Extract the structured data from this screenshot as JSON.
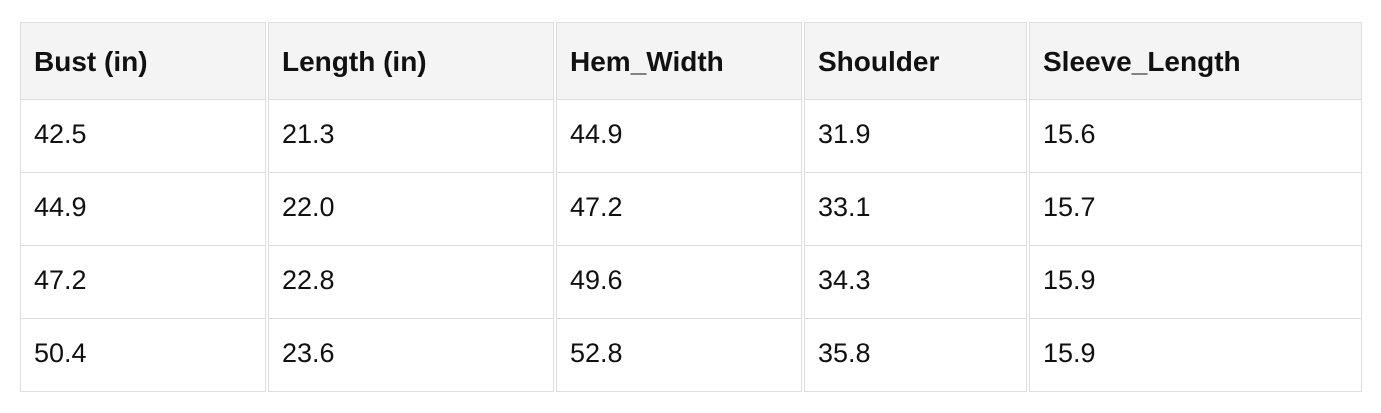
{
  "colors": {
    "page_bg": "#ffffff",
    "header_bg": "#f4f4f4",
    "border": "#dedede",
    "text": "#111111"
  },
  "chart_data": {
    "type": "table",
    "title": "",
    "columns": [
      "Bust (in)",
      "Length (in)",
      "Hem_Width",
      "Shoulder",
      "Sleeve_Length"
    ],
    "rows": [
      [
        "42.5",
        "21.3",
        "44.9",
        "31.9",
        "15.6"
      ],
      [
        "44.9",
        "22.0",
        "47.2",
        "33.1",
        "15.7"
      ],
      [
        "47.2",
        "22.8",
        "49.6",
        "34.3",
        "15.9"
      ],
      [
        "50.4",
        "23.6",
        "52.8",
        "35.8",
        "15.9"
      ]
    ]
  }
}
